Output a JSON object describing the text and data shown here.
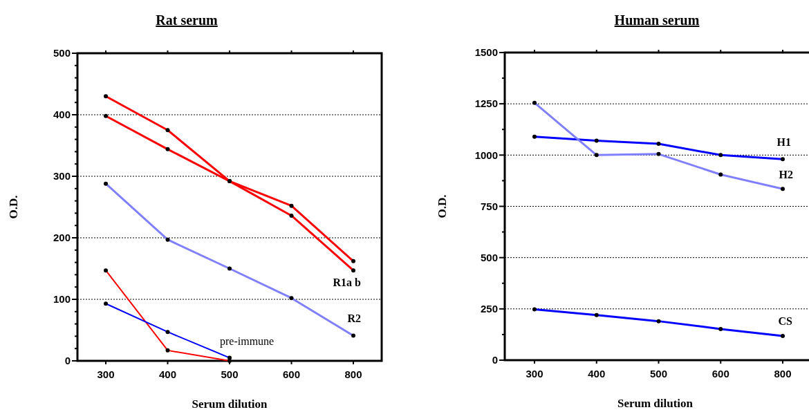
{
  "chart_data": [
    {
      "type": "line",
      "title": "Rat serum",
      "xlabel": "Serum dilution",
      "ylabel": "O.D.",
      "categories": [
        "300",
        "400",
        "500",
        "600",
        "800"
      ],
      "ylim": [
        0,
        500
      ],
      "yticks": [
        0,
        {
          "value": 20,
          "label": null
        },
        {
          "value": 40,
          "label": null
        },
        {
          "value": 60,
          "label": null
        },
        {
          "value": 80,
          "label": null
        },
        100,
        {
          "value": 120,
          "label": null
        },
        {
          "value": 140,
          "label": null
        },
        {
          "value": 160,
          "label": null
        },
        {
          "value": 180,
          "label": null
        },
        200,
        {
          "value": 220,
          "label": null
        },
        {
          "value": 240,
          "label": null
        },
        {
          "value": 260,
          "label": null
        },
        {
          "value": 280,
          "label": null
        },
        300,
        {
          "value": 320,
          "label": null
        },
        {
          "value": 340,
          "label": null
        },
        {
          "value": 360,
          "label": null
        },
        {
          "value": 380,
          "label": null
        },
        400,
        {
          "value": 420,
          "label": null
        },
        {
          "value": 440,
          "label": null
        },
        {
          "value": 460,
          "label": null
        },
        {
          "value": 480,
          "label": null
        },
        500
      ],
      "grid": "y",
      "marker": "circle",
      "line_style": "solid",
      "series": [
        {
          "color": "#ff0000",
          "values": [
            430,
            375,
            292,
            252,
            162
          ]
        },
        {
          "color": "#ff0000",
          "values": [
            398,
            344,
            292,
            236,
            147
          ]
        },
        {
          "color": "#8080ff",
          "values": [
            288,
            197,
            150,
            102,
            41
          ]
        },
        {
          "color": "#ff0000",
          "values": [
            147,
            17,
            0,
            null,
            null
          ]
        },
        {
          "color": "#0000ff",
          "values": [
            93,
            47,
            5,
            null,
            null
          ]
        }
      ],
      "annotations": [
        "R1a b",
        "R2",
        "pre-immune"
      ]
    },
    {
      "type": "line",
      "title": "Human serum",
      "xlabel": "Serum dilution",
      "ylabel": "O.D.",
      "categories": [
        "300",
        "400",
        "500",
        "600",
        "800"
      ],
      "ylim": [
        0,
        1500
      ],
      "yticks": [
        0,
        {
          "value": 125,
          "label": null
        },
        250,
        {
          "value": 375,
          "label": null
        },
        500,
        {
          "value": 625,
          "label": null
        },
        750,
        {
          "value": 875,
          "label": null
        },
        1000,
        {
          "value": 1125,
          "label": null
        },
        1250,
        {
          "value": 1375,
          "label": null
        },
        1500
      ],
      "grid": "y",
      "marker": "circle",
      "line_style": "solid",
      "series": [
        {
          "color": "#0000ff",
          "values": [
            1090,
            1070,
            1055,
            1000,
            980
          ]
        },
        {
          "color": "#8080ff",
          "values": [
            1255,
            1000,
            1005,
            905,
            835
          ]
        },
        {
          "color": "#0000ff",
          "values": [
            248,
            220,
            190,
            152,
            118
          ]
        }
      ],
      "annotations": [
        "H1",
        "H2",
        "CS"
      ]
    }
  ]
}
